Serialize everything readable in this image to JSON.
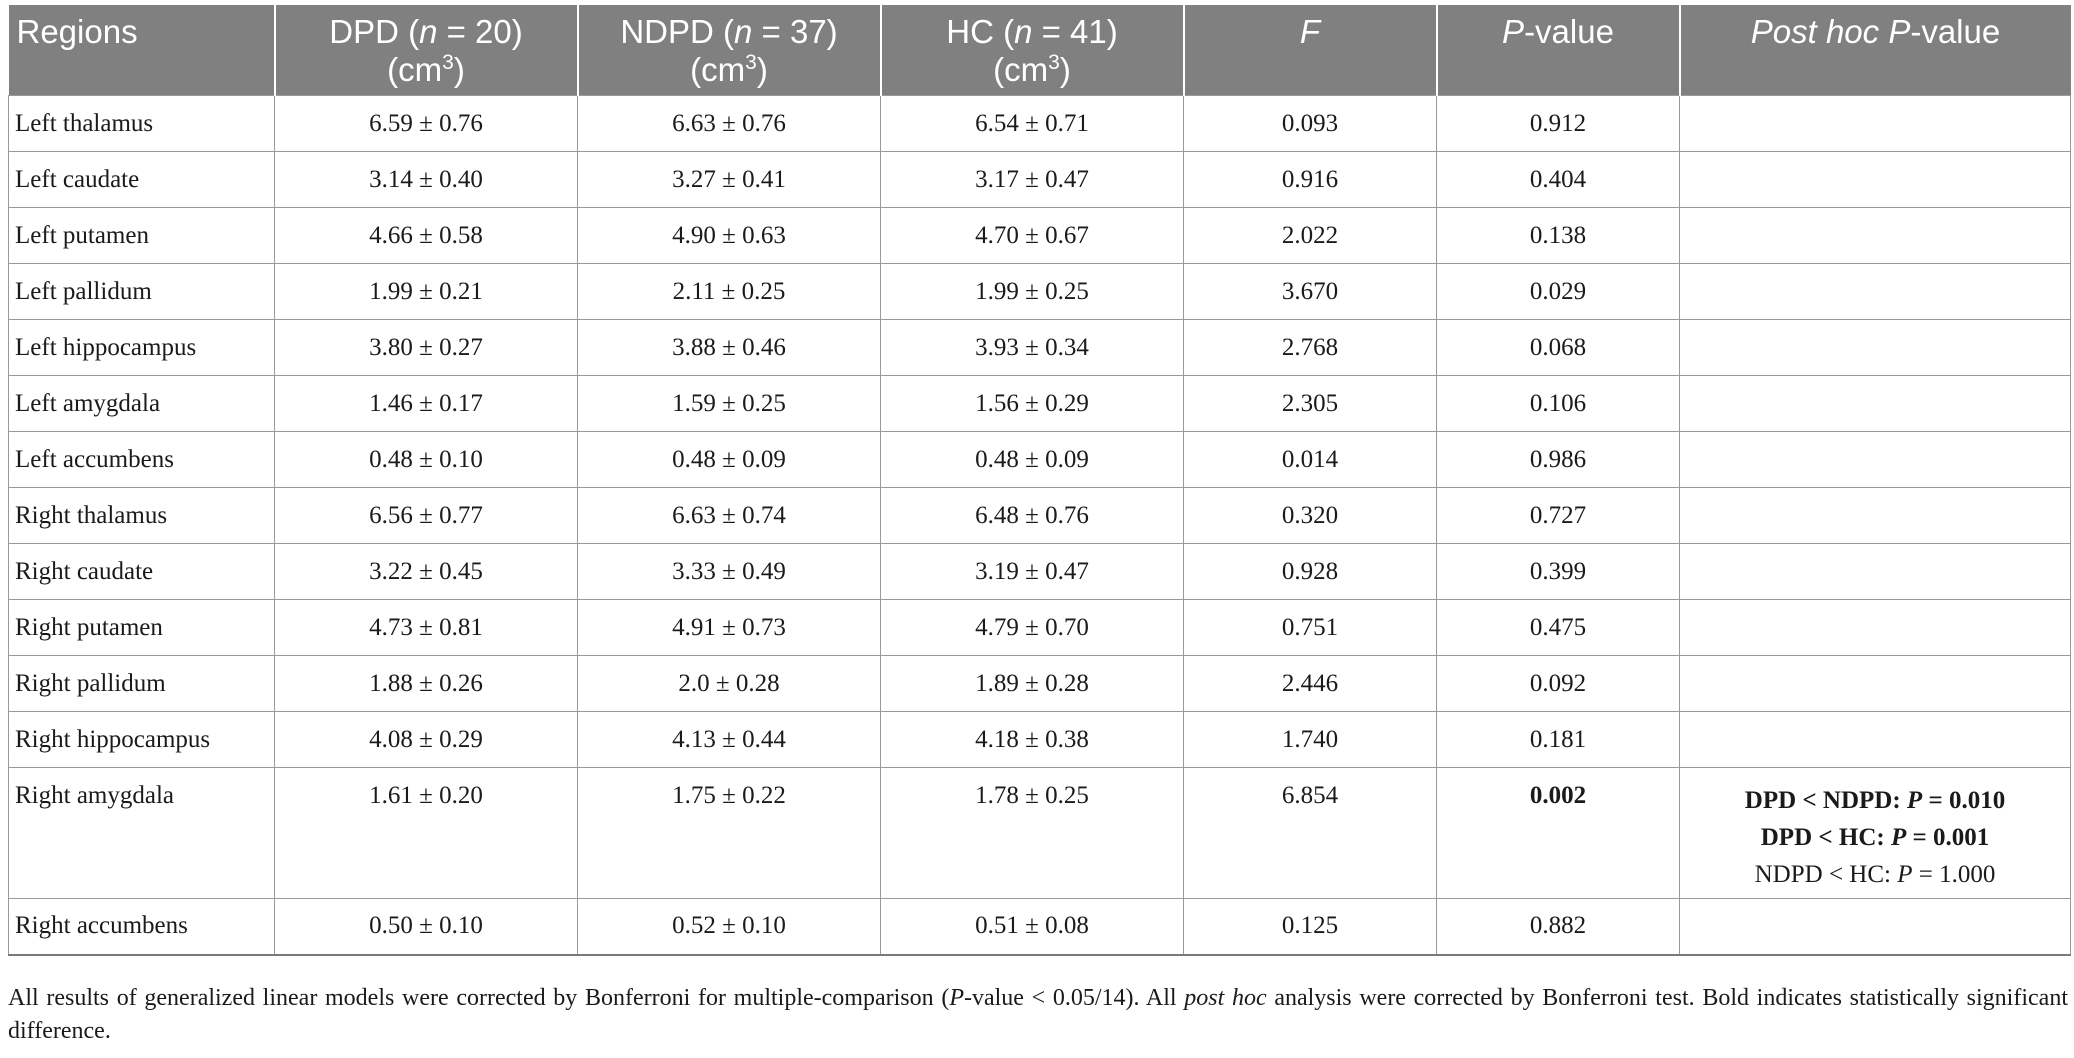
{
  "table": {
    "headers": {
      "regions": "Regions",
      "dpd_a": "DPD (",
      "dpd_n": "n",
      "dpd_b": " = 20)",
      "ndpd_a": "NDPD (",
      "ndpd_n": "n",
      "ndpd_b": " = 37)",
      "hc_a": "HC (",
      "hc_n": "n",
      "hc_b": " = 41)",
      "unit": "(cm",
      "unit_exp": "3",
      "unit_close": ")",
      "f": "F",
      "p_a": "P",
      "p_b": "-value",
      "posthoc_a": "Post hoc P",
      "posthoc_b": "-value"
    },
    "rows": [
      {
        "region": "Left thalamus",
        "dpd": "6.59 ± 0.76",
        "ndpd": "6.63 ± 0.76",
        "hc": "6.54 ± 0.71",
        "f": "0.093",
        "p": "0.912"
      },
      {
        "region": "Left caudate",
        "dpd": "3.14 ± 0.40",
        "ndpd": "3.27 ± 0.41",
        "hc": "3.17 ± 0.47",
        "f": "0.916",
        "p": "0.404"
      },
      {
        "region": "Left putamen",
        "dpd": "4.66 ± 0.58",
        "ndpd": "4.90 ± 0.63",
        "hc": "4.70 ± 0.67",
        "f": "2.022",
        "p": "0.138"
      },
      {
        "region": "Left pallidum",
        "dpd": "1.99 ± 0.21",
        "ndpd": "2.11 ± 0.25",
        "hc": "1.99 ± 0.25",
        "f": "3.670",
        "p": "0.029"
      },
      {
        "region": "Left hippocampus",
        "dpd": "3.80 ± 0.27",
        "ndpd": "3.88 ± 0.46",
        "hc": "3.93 ± 0.34",
        "f": "2.768",
        "p": "0.068"
      },
      {
        "region": "Left amygdala",
        "dpd": "1.46 ± 0.17",
        "ndpd": "1.59 ± 0.25",
        "hc": "1.56 ± 0.29",
        "f": "2.305",
        "p": "0.106"
      },
      {
        "region": "Left accumbens",
        "dpd": "0.48 ± 0.10",
        "ndpd": "0.48 ± 0.09",
        "hc": "0.48 ± 0.09",
        "f": "0.014",
        "p": "0.986"
      },
      {
        "region": "Right thalamus",
        "dpd": "6.56 ± 0.77",
        "ndpd": "6.63 ± 0.74",
        "hc": "6.48 ± 0.76",
        "f": "0.320",
        "p": "0.727"
      },
      {
        "region": "Right caudate",
        "dpd": "3.22 ± 0.45",
        "ndpd": "3.33 ± 0.49",
        "hc": "3.19 ± 0.47",
        "f": "0.928",
        "p": "0.399"
      },
      {
        "region": "Right putamen",
        "dpd": "4.73 ± 0.81",
        "ndpd": "4.91 ± 0.73",
        "hc": "4.79 ± 0.70",
        "f": "0.751",
        "p": "0.475"
      },
      {
        "region": "Right pallidum",
        "dpd": "1.88 ± 0.26",
        "ndpd": "2.0 ± 0.28",
        "hc": "1.89 ± 0.28",
        "f": "2.446",
        "p": "0.092"
      },
      {
        "region": "Right hippocampus",
        "dpd": "4.08 ± 0.29",
        "ndpd": "4.13 ± 0.44",
        "hc": "4.18 ± 0.38",
        "f": "1.740",
        "p": "0.181"
      },
      {
        "region": "Right amygdala",
        "dpd": "1.61 ± 0.20",
        "ndpd": "1.75 ± 0.22",
        "hc": "1.78 ± 0.25",
        "f": "6.854",
        "p": "0.002",
        "posthoc": {
          "line1_a": "DPD < NDPD: ",
          "line1_p": "P",
          "line1_b": " = 0.010",
          "line2_a": "DPD < HC: ",
          "line2_p": "P",
          "line2_b": " = 0.001",
          "line3_a": "NDPD < HC: ",
          "line3_p": "P",
          "line3_b": " = 1.000"
        }
      },
      {
        "region": "Right accumbens",
        "dpd": "0.50 ± 0.10",
        "ndpd": "0.52 ± 0.10",
        "hc": "0.51 ± 0.08",
        "f": "0.125",
        "p": "0.882"
      }
    ]
  },
  "footnote": {
    "s1": "All results of generalized linear models were corrected by Bonferroni for multiple-comparison (",
    "s1_p": "P",
    "s2": "-value < 0.05/14). All ",
    "s2_italic": "post hoc",
    "s3": " analysis were corrected by Bonferroni test. Bold indicates statistically significant difference."
  }
}
